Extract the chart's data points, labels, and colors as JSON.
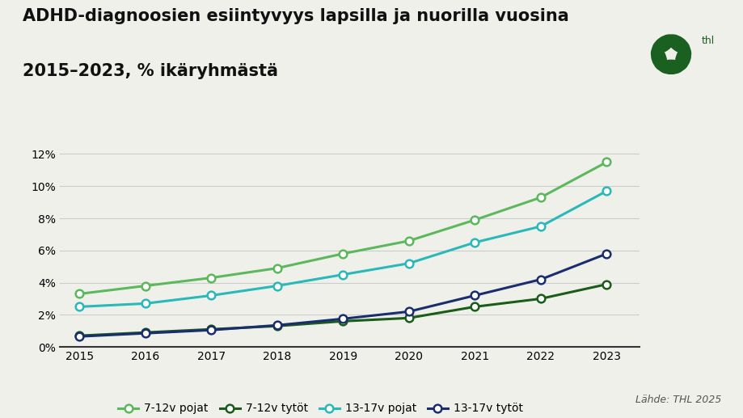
{
  "title_line1": "ADHD-diagnoosien esiintyvyys lapsilla ja nuorilla vuosina",
  "title_line2": "2015–2023, % ikäryhmästä",
  "years": [
    2015,
    2016,
    2017,
    2018,
    2019,
    2020,
    2021,
    2022,
    2023
  ],
  "series_order": [
    "7-12v pojat",
    "7-12v tytot",
    "13-17v pojat",
    "13-17v tytot"
  ],
  "series": {
    "7-12v pojat": {
      "values": [
        3.3,
        3.8,
        4.3,
        4.9,
        5.8,
        6.6,
        7.9,
        9.3,
        11.5
      ],
      "color": "#5cb85c",
      "label": "7-12v pojat"
    },
    "7-12v tytot": {
      "values": [
        0.7,
        0.9,
        1.1,
        1.3,
        1.6,
        1.8,
        2.5,
        3.0,
        3.9
      ],
      "color": "#1a5c1a",
      "label": "7-12v tytöt"
    },
    "13-17v pojat": {
      "values": [
        2.5,
        2.7,
        3.2,
        3.8,
        4.5,
        5.2,
        6.5,
        7.5,
        9.7
      ],
      "color": "#2ab8b8",
      "label": "13-17v pojat"
    },
    "13-17v tytot": {
      "values": [
        0.65,
        0.85,
        1.05,
        1.35,
        1.75,
        2.2,
        3.2,
        4.2,
        5.8
      ],
      "color": "#1a2e6e",
      "label": "13-17v tytöt"
    }
  },
  "ylim": [
    0,
    0.13
  ],
  "yticks": [
    0,
    0.02,
    0.04,
    0.06,
    0.08,
    0.1,
    0.12
  ],
  "ytick_labels": [
    "0%",
    "2%",
    "4%",
    "6%",
    "8%",
    "10%",
    "12%"
  ],
  "source_text": "Lähde: THL 2025",
  "background_color": "#f0f0eb",
  "grid_color": "#cccccc",
  "title_fontsize": 15,
  "axis_fontsize": 10,
  "legend_fontsize": 10,
  "linewidth": 2.2,
  "markersize": 7,
  "thl_color": "#1a6020"
}
